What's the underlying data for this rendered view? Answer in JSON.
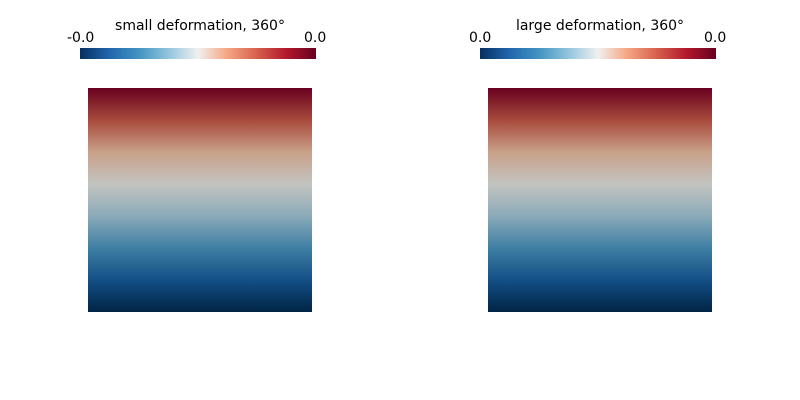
{
  "colormap": {
    "name": "RdBu (diverging)",
    "stops": [
      "#053061",
      "#2166ac",
      "#4393c3",
      "#92c5de",
      "#f0f0f0",
      "#f4a582",
      "#d6604d",
      "#b2182b",
      "#67001f"
    ]
  },
  "field_gradient": {
    "stops_top_to_bottom": [
      "#67001f",
      "#a84a3c",
      "#c8a088",
      "#c4c4c0",
      "#8aaab8",
      "#3f7fa4",
      "#134f86",
      "#002445"
    ]
  },
  "panels": [
    {
      "title": "small deformation, 360°",
      "range_min_label": "-0.0",
      "range_max_label": "0.0"
    },
    {
      "title": "large deformation, 360°",
      "range_min_label": "0.0",
      "range_max_label": "0.0"
    }
  ]
}
